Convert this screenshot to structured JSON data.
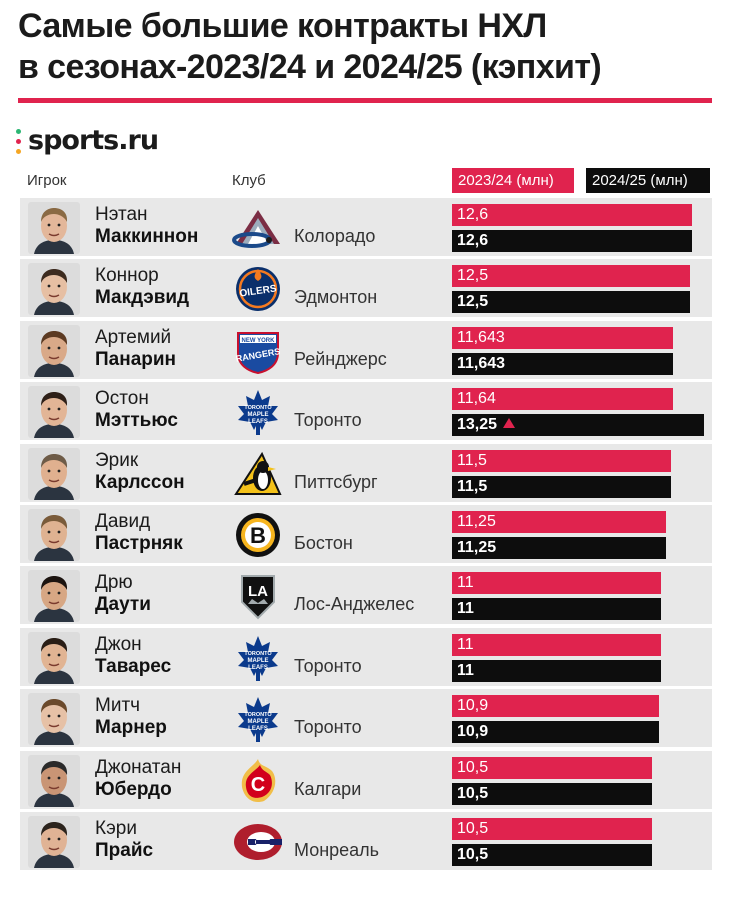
{
  "title_lines": [
    "Самые большие контракты НХЛ",
    "в сезонах-2023/24 и 2024/25 (кэпхит)"
  ],
  "brand": "sports.ru",
  "headers": {
    "player": "Игрок",
    "club": "Клуб"
  },
  "colors": {
    "accent": "#e0234e",
    "dark": "#0d0d0d",
    "row_bg": "#e8e8e8"
  },
  "chart_data": {
    "type": "bar",
    "orientation": "horizontal",
    "title": "Самые большие контракты НХЛ в сезонах-2023/24 и 2024/25 (кэпхит)",
    "categories": [
      "Нэтан Маккиннон",
      "Коннор Макдэвид",
      "Артемий Панарин",
      "Остон Мэттьюс",
      "Эрик Карлссон",
      "Давид Пастрняк",
      "Дрю Даути",
      "Джон Таварес",
      "Митч Марнер",
      "Джонатан Юбердо",
      "Кэри Прайс"
    ],
    "series": [
      {
        "name": "2023/24 (млн)",
        "color": "#e0234e",
        "values": [
          12.6,
          12.5,
          11.643,
          11.64,
          11.5,
          11.25,
          11,
          11,
          10.9,
          10.5,
          10.5
        ],
        "labels": [
          "12,6",
          "12,5",
          "11,643",
          "11,64",
          "11,5",
          "11,25",
          "11",
          "11",
          "10,9",
          "10,5",
          "10,5"
        ]
      },
      {
        "name": "2024/25 (млн)",
        "color": "#0d0d0d",
        "values": [
          12.6,
          12.5,
          11.643,
          13.25,
          11.5,
          11.25,
          11,
          11,
          10.9,
          10.5,
          10.5
        ],
        "labels": [
          "12,6",
          "12,5",
          "11,643",
          "13,25",
          "11,5",
          "11,25",
          "11",
          "11",
          "10,9",
          "10,5",
          "10,5"
        ]
      }
    ],
    "increase_marker": {
      "row": 3,
      "series": 1,
      "icon": "up-triangle-icon"
    },
    "legend": "top-right",
    "grid": false
  },
  "rows": [
    {
      "first": "Нэтан",
      "last": "Маккиннон",
      "club": "Колорадо",
      "logo": "avalanche-logo-icon"
    },
    {
      "first": "Коннор",
      "last": "Макдэвид",
      "club": "Эдмонтон",
      "logo": "oilers-logo-icon"
    },
    {
      "first": "Артемий",
      "last": "Панарин",
      "club": "Рейнджерс",
      "logo": "rangers-logo-icon"
    },
    {
      "first": "Остон",
      "last": "Мэттьюс",
      "club": "Торонто",
      "logo": "maple-leafs-logo-icon"
    },
    {
      "first": "Эрик",
      "last": "Карлссон",
      "club": "Питтсбург",
      "logo": "penguins-logo-icon"
    },
    {
      "first": "Давид",
      "last": "Пастрняк",
      "club": "Бостон",
      "logo": "bruins-logo-icon"
    },
    {
      "first": "Дрю",
      "last": "Даути",
      "club": "Лос-Анджелес",
      "logo": "kings-logo-icon"
    },
    {
      "first": "Джон",
      "last": "Таварес",
      "club": "Торонто",
      "logo": "maple-leafs-logo-icon"
    },
    {
      "first": "Митч",
      "last": "Марнер",
      "club": "Торонто",
      "logo": "maple-leafs-logo-icon"
    },
    {
      "first": "Джонатан",
      "last": "Юбердо",
      "club": "Калгари",
      "logo": "flames-logo-icon"
    },
    {
      "first": "Кэри",
      "last": "Прайс",
      "club": "Монреаль",
      "logo": "canadiens-logo-icon"
    }
  ],
  "logo_text": {
    "rangers_top": "NEW YORK",
    "rangers_main": "RANGERS",
    "leafs_top": "TORONTO",
    "leafs_mid": "MAPLE",
    "leafs_bot": "LEAFS",
    "oilers": "OILERS",
    "kings": "LA",
    "bruins": "B",
    "flames": "C"
  }
}
